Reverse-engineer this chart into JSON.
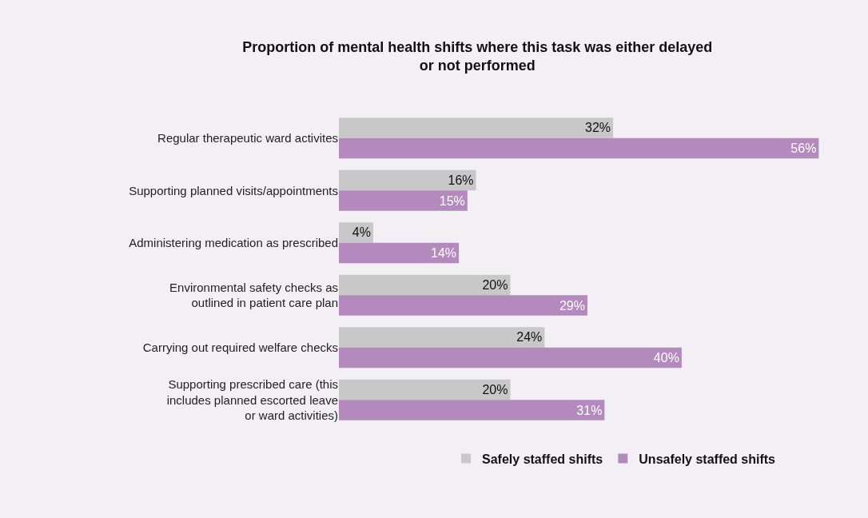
{
  "chart_data": {
    "type": "bar",
    "orientation": "horizontal",
    "title": "Proportion of mental health shifts where this task was either delayed\nor not performed",
    "categories": [
      "Regular therapeutic ward activites",
      "Supporting planned visits/appointments",
      "Administering medication as prescribed",
      "Environmental safety checks as\noutlined in patient care plan",
      "Carrying out required welfare checks",
      "Supporting prescribed care (this\nincludes planned escorted leave\nor ward activities)"
    ],
    "series": [
      {
        "name": "Safely staffed shifts",
        "color": "#c8c8c8",
        "values": [
          32,
          16,
          4,
          20,
          24,
          20
        ],
        "value_labels": [
          "32%",
          "16%",
          "4%",
          "20%",
          "24%",
          "20%"
        ]
      },
      {
        "name": "Unsafely staffed shifts",
        "color": "#b48abe",
        "values": [
          56,
          15,
          14,
          29,
          40,
          31
        ],
        "value_labels": [
          "56%",
          "15%",
          "14%",
          "29%",
          "40%",
          "31%"
        ]
      }
    ],
    "legend": "bottom",
    "grid": false
  }
}
